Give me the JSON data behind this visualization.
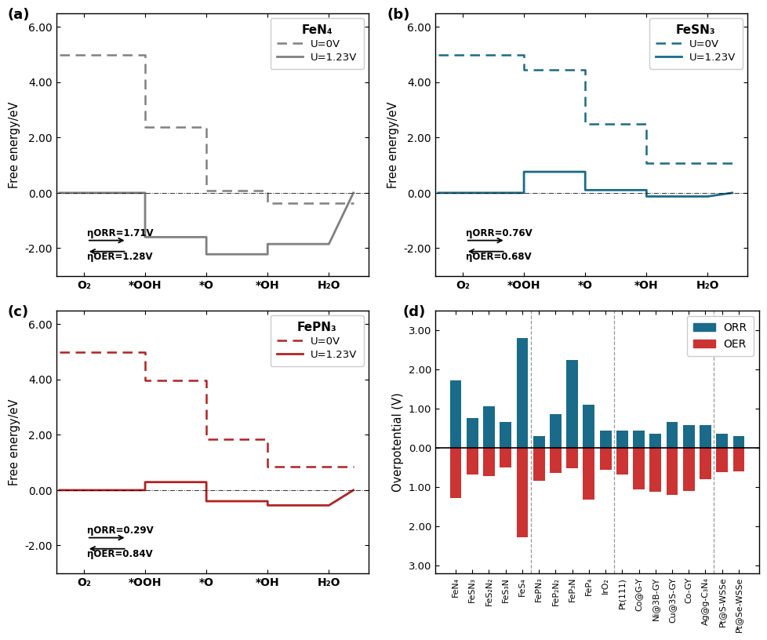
{
  "panels_abc": {
    "a": {
      "title": "FeN₄",
      "color": "#808080",
      "dashed_x": [
        -0.4,
        1,
        1,
        2,
        2,
        3,
        3,
        4,
        4.4
      ],
      "dashed_y": [
        4.98,
        4.98,
        2.38,
        2.38,
        0.08,
        0.08,
        -0.38,
        -0.38,
        -0.38
      ],
      "solid_x": [
        -0.4,
        1,
        1,
        2,
        2,
        3,
        3,
        4,
        4.4
      ],
      "solid_y": [
        0.0,
        0.0,
        -1.6,
        -1.6,
        -2.22,
        -2.22,
        -1.85,
        -1.85,
        0.0
      ],
      "eta_ORR": "ηORR=1.71V",
      "eta_OER": "ηOER=1.28V"
    },
    "b": {
      "title": "FeSN₃",
      "color": "#1a6b8a",
      "dashed_x": [
        -0.4,
        1,
        1,
        2,
        2,
        3,
        3,
        4,
        4.4
      ],
      "dashed_y": [
        4.98,
        4.98,
        4.44,
        4.44,
        2.5,
        2.5,
        1.07,
        1.07,
        1.07
      ],
      "solid_x": [
        -0.4,
        1,
        1,
        2,
        2,
        3,
        3,
        4,
        4.4
      ],
      "solid_y": [
        0.0,
        0.0,
        0.76,
        0.76,
        0.1,
        0.1,
        -0.13,
        -0.13,
        0.0
      ],
      "eta_ORR": "ηORR=0.76V",
      "eta_OER": "ηOER=0.68V"
    },
    "c": {
      "title": "FePN₃",
      "color": "#b22222",
      "dashed_x": [
        -0.4,
        1,
        1,
        2,
        2,
        3,
        3,
        4,
        4.4
      ],
      "dashed_y": [
        4.98,
        4.98,
        3.97,
        3.97,
        1.85,
        1.85,
        0.84,
        0.84,
        0.84
      ],
      "solid_x": [
        -0.4,
        1,
        1,
        2,
        2,
        3,
        3,
        4,
        4.4
      ],
      "solid_y": [
        0.0,
        0.0,
        0.29,
        0.29,
        -0.4,
        -0.4,
        -0.55,
        -0.55,
        0.0
      ],
      "eta_ORR": "ηORR=0.29V",
      "eta_OER": "ηOER=0.84V"
    }
  },
  "panel_d": {
    "categories": [
      "FeN₄",
      "FeSN₃",
      "FeS₂N₂",
      "FeS₃N",
      "FeS₄",
      "FePN₃",
      "FeP₂N₂",
      "FeP₃N",
      "FeP₄",
      "IrO₂",
      "Pt(111)",
      "Co@G-Y",
      "Ni@3B-GY",
      "Cu@3S-GY",
      "Co-GY",
      "Ag@g-C₃N₄",
      "Pt@S-WSSe",
      "Pt@Se-WSSe"
    ],
    "ORR": [
      1.71,
      0.76,
      1.05,
      0.65,
      2.8,
      0.29,
      0.85,
      2.23,
      1.1,
      0.43,
      0.43,
      0.43,
      0.36,
      0.65,
      0.58,
      0.58,
      0.35,
      0.3
    ],
    "OER": [
      1.28,
      0.68,
      0.72,
      0.5,
      2.28,
      0.84,
      0.65,
      0.52,
      1.32,
      0.56,
      0.68,
      1.07,
      1.13,
      1.21,
      1.1,
      0.8,
      0.62,
      0.6
    ],
    "ORR_color": "#1a6b8a",
    "OER_color": "#cc3333",
    "ylabel": "Overpotential (V)",
    "ylim": [
      -3.2,
      3.5
    ],
    "yticks": [
      -3.0,
      -2.0,
      -1.0,
      0.0,
      1.0,
      2.0,
      3.0
    ],
    "yticklabels": [
      "3.00",
      "2.00",
      "1.00",
      "0.00",
      "1.00",
      "2.00",
      "3.00"
    ],
    "vlines": [
      4.5,
      9.5,
      15.5
    ]
  },
  "xlabel_items": [
    "O₂",
    "*OOH",
    "*O",
    "*OH",
    "H₂O"
  ],
  "ylabel_abc": "Free energy/eV",
  "ylim_abc": [
    -3.0,
    6.5
  ],
  "yticks_abc": [
    -2.0,
    0.0,
    2.0,
    4.0,
    6.0
  ],
  "yticklabels_abc": [
    "-2.00",
    "0.00",
    "2.00",
    "4.00",
    "6.00"
  ]
}
